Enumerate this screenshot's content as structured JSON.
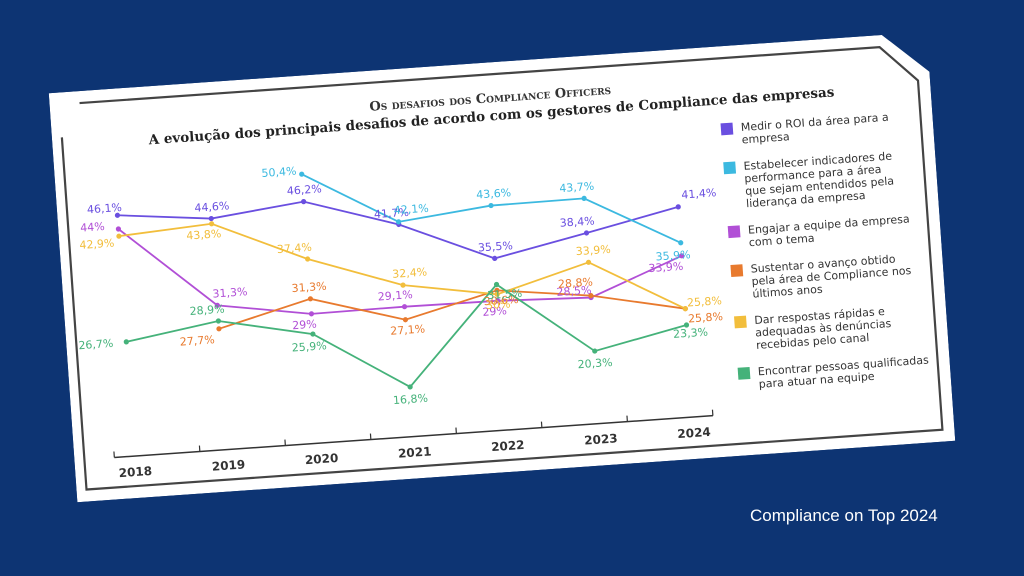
{
  "chart_data": {
    "type": "line",
    "title": "Os desafios dos Compliance Officers",
    "subtitle": "A evolução dos principais desafios de acordo com os gestores de Compliance das empresas",
    "xlabel": "",
    "ylabel": "",
    "x": [
      "2018",
      "2019",
      "2020",
      "2021",
      "2022",
      "2023",
      "2024"
    ],
    "legend_position": "right",
    "grid": false,
    "series": [
      {
        "name": "Medir o ROI da área para a empresa",
        "color": "#6a4fe0",
        "values": [
          46.1,
          44.6,
          46.2,
          41.7,
          35.5,
          38.4,
          41.4
        ],
        "labels": [
          "46,1%",
          "44,6%",
          "46,2%",
          "41,7%",
          "35,5%",
          "38,4%",
          "41,4%"
        ]
      },
      {
        "name": "Estabelecer indicadores de performance para a área que sejam entendidos pela liderança da empresa",
        "color": "#3cb9e0",
        "values": [
          null,
          null,
          50.4,
          42.1,
          43.6,
          43.7,
          35.9
        ],
        "labels": [
          "",
          "",
          "50,4%",
          "42,1%",
          "43,6%",
          "43,7%",
          "35,9%"
        ]
      },
      {
        "name": "Engajar a equipe da empresa com o tema",
        "color": "#b14fd6",
        "values": [
          44,
          31.3,
          29,
          29.1,
          29,
          28.5,
          33.9
        ],
        "labels": [
          "44%",
          "31,3%",
          "29%",
          "29,1%",
          "29%",
          "28,5%",
          "33,9%"
        ]
      },
      {
        "name": "Sustentar o avanço obtido pela área de Compliance nos últimos anos",
        "color": "#e87a2e",
        "values": [
          null,
          27.7,
          31.3,
          27.1,
          30.6,
          28.8,
          25.8
        ],
        "labels": [
          "",
          "27,7%",
          "31,3%",
          "27,1%",
          "30,6%",
          "28,8%",
          "25,8%"
        ]
      },
      {
        "name": "Dar respostas rápidas e adequadas às denúncias recebidas pelo canal",
        "color": "#f2be3c",
        "values": [
          42.9,
          43.8,
          37.4,
          32.4,
          30,
          33.9,
          25.8
        ],
        "labels": [
          "42,9%",
          "43,8%",
          "37,4%",
          "32,4%",
          "30%",
          "33,9%",
          "25,8%"
        ]
      },
      {
        "name": "Encontrar pessoas qualificadas para atuar na equipe",
        "color": "#45b27a",
        "values": [
          26.7,
          28.9,
          25.9,
          16.8,
          31.5,
          20.3,
          23.3
        ],
        "labels": [
          "26,7%",
          "28,9%",
          "25,9%",
          "16,8%",
          "31,5%",
          "20,3%",
          "23,3%"
        ]
      }
    ]
  },
  "credit": "Compliance on Top 2024"
}
